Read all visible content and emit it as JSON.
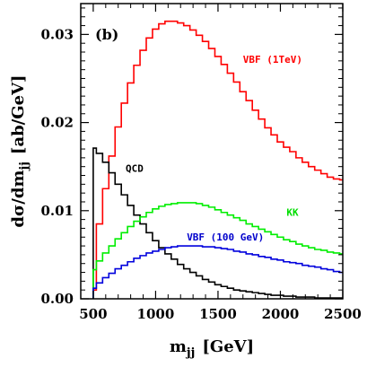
{
  "chart_data": {
    "type": "line",
    "panel_label": "(b)",
    "xlabel_main": "m",
    "xlabel_sub": "jj",
    "xlabel_unit": "[GeV]",
    "ylabel_main": "dσ/dm",
    "ylabel_sub": "jj",
    "ylabel_unit": "[ab/GeV]",
    "xlim": [
      400,
      2500
    ],
    "ylim": [
      0,
      0.0335
    ],
    "xticks": [
      500,
      1000,
      1500,
      2000,
      2500
    ],
    "xtick_labels": [
      "500",
      "1000",
      "1500",
      "2000",
      "2500"
    ],
    "yticks": [
      0,
      0.01,
      0.02,
      0.03
    ],
    "ytick_labels": [
      "0.00",
      "0.01",
      "0.02",
      "0.03"
    ],
    "grid": false,
    "legend": "none",
    "series": [
      {
        "name": "VBF (1TeV)",
        "color": "#ff0000",
        "x": [
          500,
          550,
          600,
          650,
          700,
          750,
          800,
          850,
          900,
          950,
          1000,
          1050,
          1100,
          1150,
          1200,
          1250,
          1300,
          1350,
          1400,
          1450,
          1500,
          1550,
          1600,
          1650,
          1700,
          1750,
          1800,
          1850,
          1900,
          1950,
          2000,
          2050,
          2100,
          2150,
          2200,
          2250,
          2300,
          2350,
          2400,
          2450,
          2500
        ],
        "y": [
          0.001,
          0.0085,
          0.0125,
          0.0162,
          0.0195,
          0.0222,
          0.0245,
          0.0265,
          0.0282,
          0.0296,
          0.0306,
          0.0312,
          0.0315,
          0.0315,
          0.0313,
          0.031,
          0.0305,
          0.0299,
          0.0292,
          0.0284,
          0.0275,
          0.0266,
          0.0256,
          0.0246,
          0.0235,
          0.0225,
          0.0214,
          0.0204,
          0.0194,
          0.0186,
          0.0178,
          0.0172,
          0.0167,
          0.016,
          0.0155,
          0.015,
          0.0146,
          0.0142,
          0.0138,
          0.0136,
          0.0135
        ]
      },
      {
        "name": "QCD",
        "color": "#000000",
        "x": [
          500,
          550,
          600,
          650,
          700,
          750,
          800,
          850,
          900,
          950,
          1000,
          1050,
          1100,
          1150,
          1200,
          1250,
          1300,
          1350,
          1400,
          1450,
          1500,
          1550,
          1600,
          1650,
          1700,
          1750,
          1800,
          1850,
          1900,
          1950,
          2000,
          2050,
          2100,
          2150,
          2200,
          2250,
          2300,
          2350,
          2400,
          2450,
          2500
        ],
        "y": [
          0.0171,
          0.0165,
          0.0155,
          0.0143,
          0.013,
          0.0118,
          0.0106,
          0.0095,
          0.0085,
          0.0075,
          0.0066,
          0.0058,
          0.0051,
          0.0045,
          0.0039,
          0.0034,
          0.003,
          0.0026,
          0.0022,
          0.0019,
          0.0016,
          0.0014,
          0.0012,
          0.001,
          0.0009,
          0.0008,
          0.0007,
          0.0006,
          0.0005,
          0.0004,
          0.0004,
          0.0003,
          0.0003,
          0.0002,
          0.0002,
          0.0002,
          0.0001,
          0.0001,
          0.0001,
          0.0001,
          0.0001
        ]
      },
      {
        "name": "KK",
        "color": "#00ee00",
        "x": [
          500,
          550,
          600,
          650,
          700,
          750,
          800,
          850,
          900,
          950,
          1000,
          1050,
          1100,
          1150,
          1200,
          1250,
          1300,
          1350,
          1400,
          1450,
          1500,
          1550,
          1600,
          1650,
          1700,
          1750,
          1800,
          1850,
          1900,
          1950,
          2000,
          2050,
          2100,
          2150,
          2200,
          2250,
          2300,
          2350,
          2400,
          2450,
          2500
        ],
        "y": [
          0.0033,
          0.0043,
          0.0052,
          0.006,
          0.0068,
          0.0075,
          0.0082,
          0.0088,
          0.0093,
          0.0098,
          0.0102,
          0.0105,
          0.0107,
          0.0108,
          0.0109,
          0.0109,
          0.0109,
          0.0108,
          0.0106,
          0.0104,
          0.0101,
          0.0098,
          0.0095,
          0.0092,
          0.0089,
          0.0085,
          0.0082,
          0.0079,
          0.0076,
          0.0073,
          0.007,
          0.0067,
          0.0065,
          0.0062,
          0.006,
          0.0058,
          0.0056,
          0.0055,
          0.0053,
          0.0052,
          0.0051
        ]
      },
      {
        "name": "VBF (100 GeV)",
        "color": "#0000dd",
        "x": [
          500,
          550,
          600,
          650,
          700,
          750,
          800,
          850,
          900,
          950,
          1000,
          1050,
          1100,
          1150,
          1200,
          1250,
          1300,
          1350,
          1400,
          1450,
          1500,
          1550,
          1600,
          1650,
          1700,
          1750,
          1800,
          1850,
          1900,
          1950,
          2000,
          2050,
          2100,
          2150,
          2200,
          2250,
          2300,
          2350,
          2400,
          2450,
          2500
        ],
        "y": [
          0.0012,
          0.0018,
          0.0024,
          0.0029,
          0.0034,
          0.0038,
          0.0042,
          0.0046,
          0.0049,
          0.0052,
          0.0054,
          0.0056,
          0.0058,
          0.0059,
          0.006,
          0.006,
          0.006,
          0.006,
          0.0059,
          0.0059,
          0.0058,
          0.0057,
          0.0056,
          0.0054,
          0.0053,
          0.0051,
          0.005,
          0.0048,
          0.0047,
          0.0045,
          0.0044,
          0.0042,
          0.0041,
          0.004,
          0.0038,
          0.0037,
          0.0036,
          0.0034,
          0.0033,
          0.0031,
          0.003
        ]
      }
    ],
    "annotations": [
      {
        "series": "VBF (1TeV)",
        "text": "VBF (1TeV)",
        "x": 1700,
        "y": 0.0268,
        "color": "#ff0000"
      },
      {
        "series": "QCD",
        "text": "QCD",
        "x": 760,
        "y": 0.0144,
        "color": "#000000"
      },
      {
        "series": "KK",
        "text": "KK",
        "x": 2050,
        "y": 0.0094,
        "color": "#00dd00"
      },
      {
        "series": "VBF (100 GeV)",
        "text": "VBF (100 GeV)",
        "x": 1250,
        "y": 0.0066,
        "color": "#0000cc"
      }
    ]
  }
}
